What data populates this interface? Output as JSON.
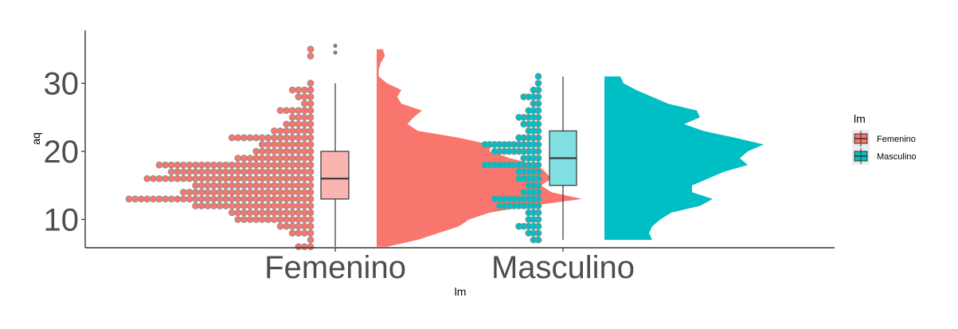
{
  "chart_data": {
    "type": "raincloud",
    "xlabel": "lm",
    "ylabel": "aq",
    "ylim": [
      5.8,
      37.8
    ],
    "yticks": [
      10,
      20,
      30
    ],
    "categories": [
      "Femenino",
      "Masculino"
    ],
    "grid": false,
    "legend": {
      "title": "lm",
      "position": "right",
      "entries": [
        "Femenino",
        "Masculino"
      ]
    },
    "colors": {
      "Femenino": "#f8766d",
      "Masculino": "#00bfc4",
      "Femenino_box": "#fbb5b0",
      "Masculino_box": "#80dfe1",
      "point_stroke": "#8c8c8c",
      "outlier": "#808080"
    },
    "series": [
      {
        "name": "Femenino",
        "box": {
          "min": 6,
          "q1": 13,
          "median": 16,
          "q3": 20,
          "max": 30,
          "outliers": [
            34.5,
            35.5
          ]
        },
        "dots": [
          {
            "y": 6,
            "n": 3
          },
          {
            "y": 7,
            "n": 1
          },
          {
            "y": 8,
            "n": 4
          },
          {
            "y": 9,
            "n": 6
          },
          {
            "y": 10,
            "n": 13
          },
          {
            "y": 11,
            "n": 14
          },
          {
            "y": 12,
            "n": 20
          },
          {
            "y": 13,
            "n": 31
          },
          {
            "y": 14,
            "n": 22
          },
          {
            "y": 15,
            "n": 20
          },
          {
            "y": 16,
            "n": 28
          },
          {
            "y": 17,
            "n": 24
          },
          {
            "y": 18,
            "n": 26
          },
          {
            "y": 19,
            "n": 13
          },
          {
            "y": 20,
            "n": 10
          },
          {
            "y": 21,
            "n": 9
          },
          {
            "y": 22,
            "n": 14
          },
          {
            "y": 23,
            "n": 7
          },
          {
            "y": 24,
            "n": 5
          },
          {
            "y": 25,
            "n": 4
          },
          {
            "y": 26,
            "n": 6
          },
          {
            "y": 27,
            "n": 2
          },
          {
            "y": 28,
            "n": 3
          },
          {
            "y": 29,
            "n": 4
          },
          {
            "y": 30,
            "n": 1
          },
          {
            "y": 34,
            "n": 1
          },
          {
            "y": 35,
            "n": 1
          }
        ],
        "density": [
          {
            "y": 6,
            "d": 0.05
          },
          {
            "y": 7,
            "d": 0.2
          },
          {
            "y": 8,
            "d": 0.3
          },
          {
            "y": 9,
            "d": 0.4
          },
          {
            "y": 10,
            "d": 0.45
          },
          {
            "y": 11,
            "d": 0.55
          },
          {
            "y": 12,
            "d": 0.75
          },
          {
            "y": 13,
            "d": 1.0
          },
          {
            "y": 14,
            "d": 0.85
          },
          {
            "y": 15,
            "d": 0.8
          },
          {
            "y": 16,
            "d": 0.85
          },
          {
            "y": 17,
            "d": 0.82
          },
          {
            "y": 18,
            "d": 0.78
          },
          {
            "y": 19,
            "d": 0.65
          },
          {
            "y": 20,
            "d": 0.55
          },
          {
            "y": 21,
            "d": 0.55
          },
          {
            "y": 22,
            "d": 0.4
          },
          {
            "y": 23,
            "d": 0.2
          },
          {
            "y": 24,
            "d": 0.15
          },
          {
            "y": 25,
            "d": 0.18
          },
          {
            "y": 26,
            "d": 0.22
          },
          {
            "y": 27,
            "d": 0.12
          },
          {
            "y": 28,
            "d": 0.1
          },
          {
            "y": 29,
            "d": 0.12
          },
          {
            "y": 30,
            "d": 0.05
          },
          {
            "y": 31,
            "d": 0.01
          },
          {
            "y": 32,
            "d": 0.01
          },
          {
            "y": 33,
            "d": 0.02
          },
          {
            "y": 34,
            "d": 0.04
          },
          {
            "y": 35,
            "d": 0.03
          }
        ]
      },
      {
        "name": "Masculino",
        "box": {
          "min": 7,
          "q1": 15,
          "median": 19,
          "q3": 23,
          "max": 31,
          "outliers": []
        },
        "dots": [
          {
            "y": 7,
            "n": 2
          },
          {
            "y": 8,
            "n": 3
          },
          {
            "y": 9,
            "n": 5
          },
          {
            "y": 10,
            "n": 3
          },
          {
            "y": 11,
            "n": 3
          },
          {
            "y": 12,
            "n": 9
          },
          {
            "y": 13,
            "n": 10
          },
          {
            "y": 14,
            "n": 4
          },
          {
            "y": 15,
            "n": 3
          },
          {
            "y": 16,
            "n": 5
          },
          {
            "y": 17,
            "n": 5
          },
          {
            "y": 18,
            "n": 12
          },
          {
            "y": 19,
            "n": 4
          },
          {
            "y": 20,
            "n": 10
          },
          {
            "y": 21,
            "n": 12
          },
          {
            "y": 22,
            "n": 5
          },
          {
            "y": 23,
            "n": 3
          },
          {
            "y": 24,
            "n": 4
          },
          {
            "y": 25,
            "n": 5
          },
          {
            "y": 26,
            "n": 3
          },
          {
            "y": 27,
            "n": 2
          },
          {
            "y": 28,
            "n": 4
          },
          {
            "y": 29,
            "n": 2
          },
          {
            "y": 30,
            "n": 1
          },
          {
            "y": 31,
            "n": 1
          }
        ],
        "density": [
          {
            "y": 7,
            "d": 0.3
          },
          {
            "y": 8,
            "d": 0.28
          },
          {
            "y": 9,
            "d": 0.3
          },
          {
            "y": 10,
            "d": 0.35
          },
          {
            "y": 11,
            "d": 0.42
          },
          {
            "y": 12,
            "d": 0.6
          },
          {
            "y": 13,
            "d": 0.68
          },
          {
            "y": 14,
            "d": 0.55
          },
          {
            "y": 15,
            "d": 0.55
          },
          {
            "y": 16,
            "d": 0.65
          },
          {
            "y": 17,
            "d": 0.75
          },
          {
            "y": 18,
            "d": 0.9
          },
          {
            "y": 19,
            "d": 0.85
          },
          {
            "y": 20,
            "d": 0.9
          },
          {
            "y": 21,
            "d": 1.0
          },
          {
            "y": 22,
            "d": 0.82
          },
          {
            "y": 23,
            "d": 0.62
          },
          {
            "y": 24,
            "d": 0.5
          },
          {
            "y": 25,
            "d": 0.6
          },
          {
            "y": 26,
            "d": 0.58
          },
          {
            "y": 27,
            "d": 0.4
          },
          {
            "y": 28,
            "d": 0.3
          },
          {
            "y": 29,
            "d": 0.2
          },
          {
            "y": 30,
            "d": 0.12
          },
          {
            "y": 31,
            "d": 0.1
          }
        ]
      }
    ]
  }
}
